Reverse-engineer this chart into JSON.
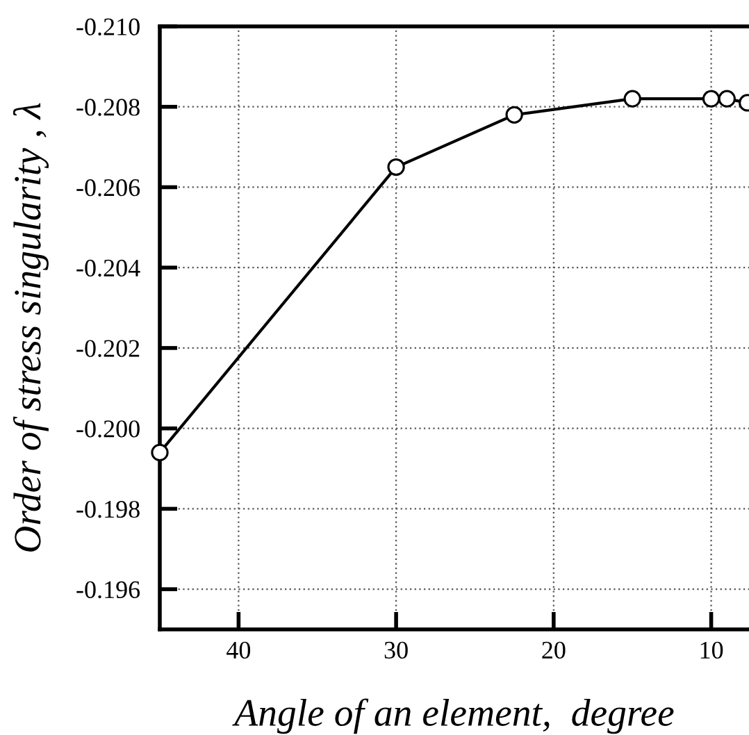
{
  "chart_data": {
    "type": "line",
    "xlabel": "Angle of an element,  degree",
    "ylabel": "Order of stress singularity , λ",
    "x": [
      45,
      30,
      22.5,
      15,
      10,
      9,
      7.7
    ],
    "series": [
      {
        "color": "#000000",
        "values": [
          -0.1994,
          -0.2065,
          -0.2078,
          -0.2082,
          -0.2082,
          -0.2082,
          -0.2081
        ]
      }
    ],
    "marker": "circle",
    "line_style": "solid",
    "xlim": [
      45,
      7.6
    ],
    "ylim": [
      -0.195,
      -0.21
    ],
    "xticks": [
      40,
      30,
      20,
      10
    ],
    "yticks": [
      {
        "value": -0.21,
        "label": "-0.210"
      },
      {
        "value": -0.208,
        "label": "-0.208"
      },
      {
        "value": -0.206,
        "label": "-0.206"
      },
      {
        "value": -0.204,
        "label": "-0.204"
      },
      {
        "value": -0.202,
        "label": "-0.202"
      },
      {
        "value": -0.2,
        "label": "-0.200"
      },
      {
        "value": -0.198,
        "label": "-0.198"
      },
      {
        "value": -0.196,
        "label": "-0.196"
      }
    ],
    "grid": true
  }
}
